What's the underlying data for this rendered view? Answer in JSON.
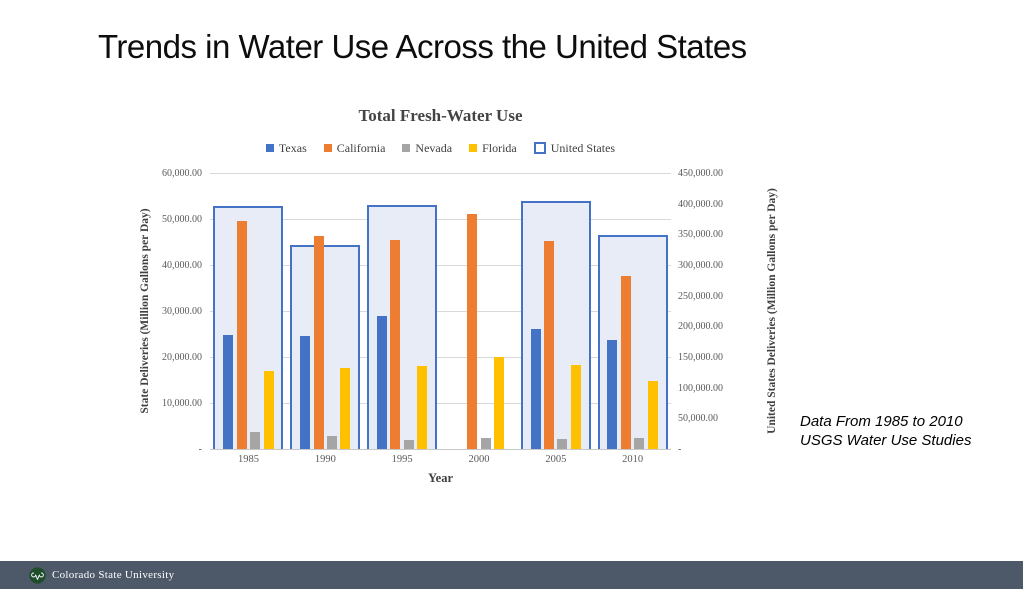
{
  "slide": {
    "title": "Trends in Water Use Across the United States",
    "annotation": {
      "line1": "Data From 1985 to 2010",
      "line2": "USGS Water Use Studies"
    },
    "footer": {
      "logo_text": "Colorado State University",
      "bar_color": "#4d5969",
      "logo_green": "#1e4d2b"
    }
  },
  "chart_data": {
    "type": "bar",
    "title": "Total Fresh-Water Use",
    "xlabel": "Year",
    "legend_position": "top",
    "grid": true,
    "categories": [
      "1985",
      "1990",
      "1995",
      "2000",
      "2005",
      "2010"
    ],
    "series": [
      {
        "name": "Texas",
        "axis": "left",
        "style": "filled",
        "color": "#4472c4",
        "values": [
          24800,
          24600,
          29000,
          null,
          26100,
          23800
        ]
      },
      {
        "name": "California",
        "axis": "left",
        "style": "filled",
        "color": "#ed7d31",
        "values": [
          49600,
          46300,
          45500,
          51100,
          45200,
          37700
        ]
      },
      {
        "name": "Nevada",
        "axis": "left",
        "style": "filled",
        "color": "#a5a5a5",
        "values": [
          3700,
          2900,
          1900,
          2300,
          2200,
          2400
        ]
      },
      {
        "name": "Florida",
        "axis": "left",
        "style": "filled",
        "color": "#ffc000",
        "values": [
          16900,
          17700,
          18000,
          20000,
          18200,
          14700
        ]
      },
      {
        "name": "United States",
        "axis": "right",
        "style": "outline",
        "color": "#4472c4",
        "fill": "#e8ecf7",
        "values": [
          397000,
          333000,
          398000,
          null,
          405000,
          349000
        ]
      }
    ],
    "left_axis": {
      "label": "State Deliveries (Million Gallons per Day)",
      "min": 0,
      "max": 60000,
      "step": 10000,
      "tick_labels": [
        "60,000.00",
        "50,000.00",
        "40,000.00",
        "30,000.00",
        "20,000.00",
        "10,000.00",
        "-"
      ]
    },
    "right_axis": {
      "label": "United States Deliveries (Million Gallons per Day)",
      "min": 0,
      "max": 450000,
      "step": 50000,
      "tick_labels": [
        "450,000.00",
        "400,000.00",
        "350,000.00",
        "300,000.00",
        "250,000.00",
        "200,000.00",
        "150,000.00",
        "100,000.00",
        "50,000.00",
        "-"
      ]
    }
  }
}
